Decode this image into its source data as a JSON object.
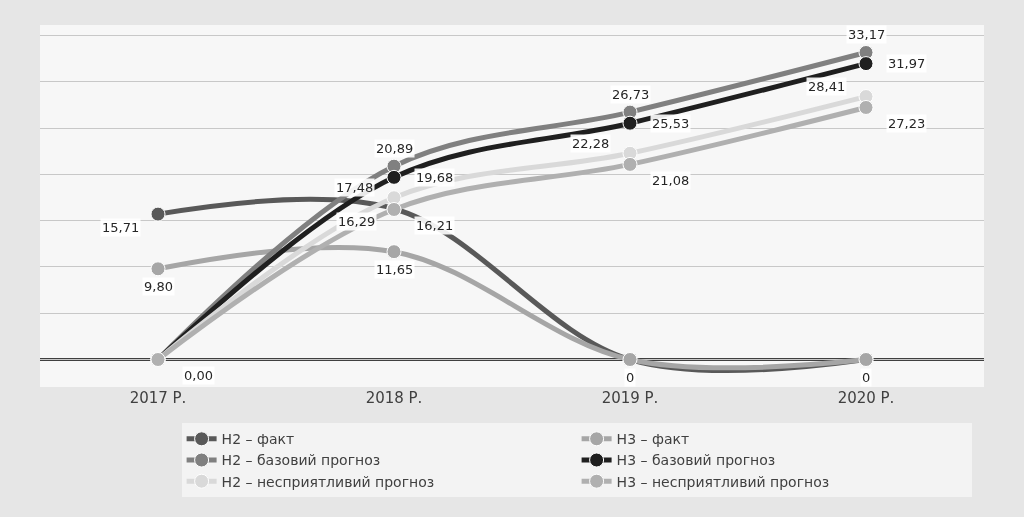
{
  "chart_data": {
    "type": "line",
    "categories": [
      "2017 Р.",
      "2018 Р.",
      "2019 Р.",
      "2020 Р."
    ],
    "series": [
      {
        "name": "Н2 – факт",
        "color": "#595959",
        "values": [
          15.71,
          16.29,
          0,
          0
        ],
        "value_labels": [
          "15,71",
          "16,29",
          null,
          null
        ]
      },
      {
        "name": "Н3 – факт",
        "color": "#a6a6a6",
        "values": [
          9.8,
          11.65,
          0,
          0
        ],
        "value_labels": [
          "9,80",
          "11,65",
          "0",
          "0"
        ]
      },
      {
        "name": "Н2 – базовий прогноз",
        "color": "#808080",
        "values": [
          0,
          20.89,
          26.73,
          33.17
        ],
        "value_labels": [
          null,
          "20,89",
          "26,73",
          "33,17"
        ]
      },
      {
        "name": "Н3 – базовий прогноз",
        "color": "#1f1f1f",
        "values": [
          0,
          19.68,
          25.53,
          31.97
        ],
        "value_labels": [
          null,
          "19,68",
          "25,53",
          "31,97"
        ]
      },
      {
        "name": "Н2 – несприятливий прогноз",
        "color": "#d9d9d9",
        "values": [
          0,
          17.48,
          22.28,
          28.41
        ],
        "value_labels": [
          null,
          "17,48",
          "22,28",
          "28,41"
        ]
      },
      {
        "name": "Н3 – несприятливий прогноз",
        "color": "#b0b0b0",
        "values": [
          0,
          16.21,
          21.08,
          27.23
        ],
        "value_labels": [
          "0,00",
          "16,21",
          "21,08",
          "27,23"
        ]
      }
    ],
    "ref_lines": [
      {
        "axis": "y",
        "value": 0,
        "color": "#404040"
      }
    ],
    "grid": "y",
    "legend": "bottom",
    "marker": "circle",
    "line_style": "solid",
    "tick_labels": "x"
  }
}
